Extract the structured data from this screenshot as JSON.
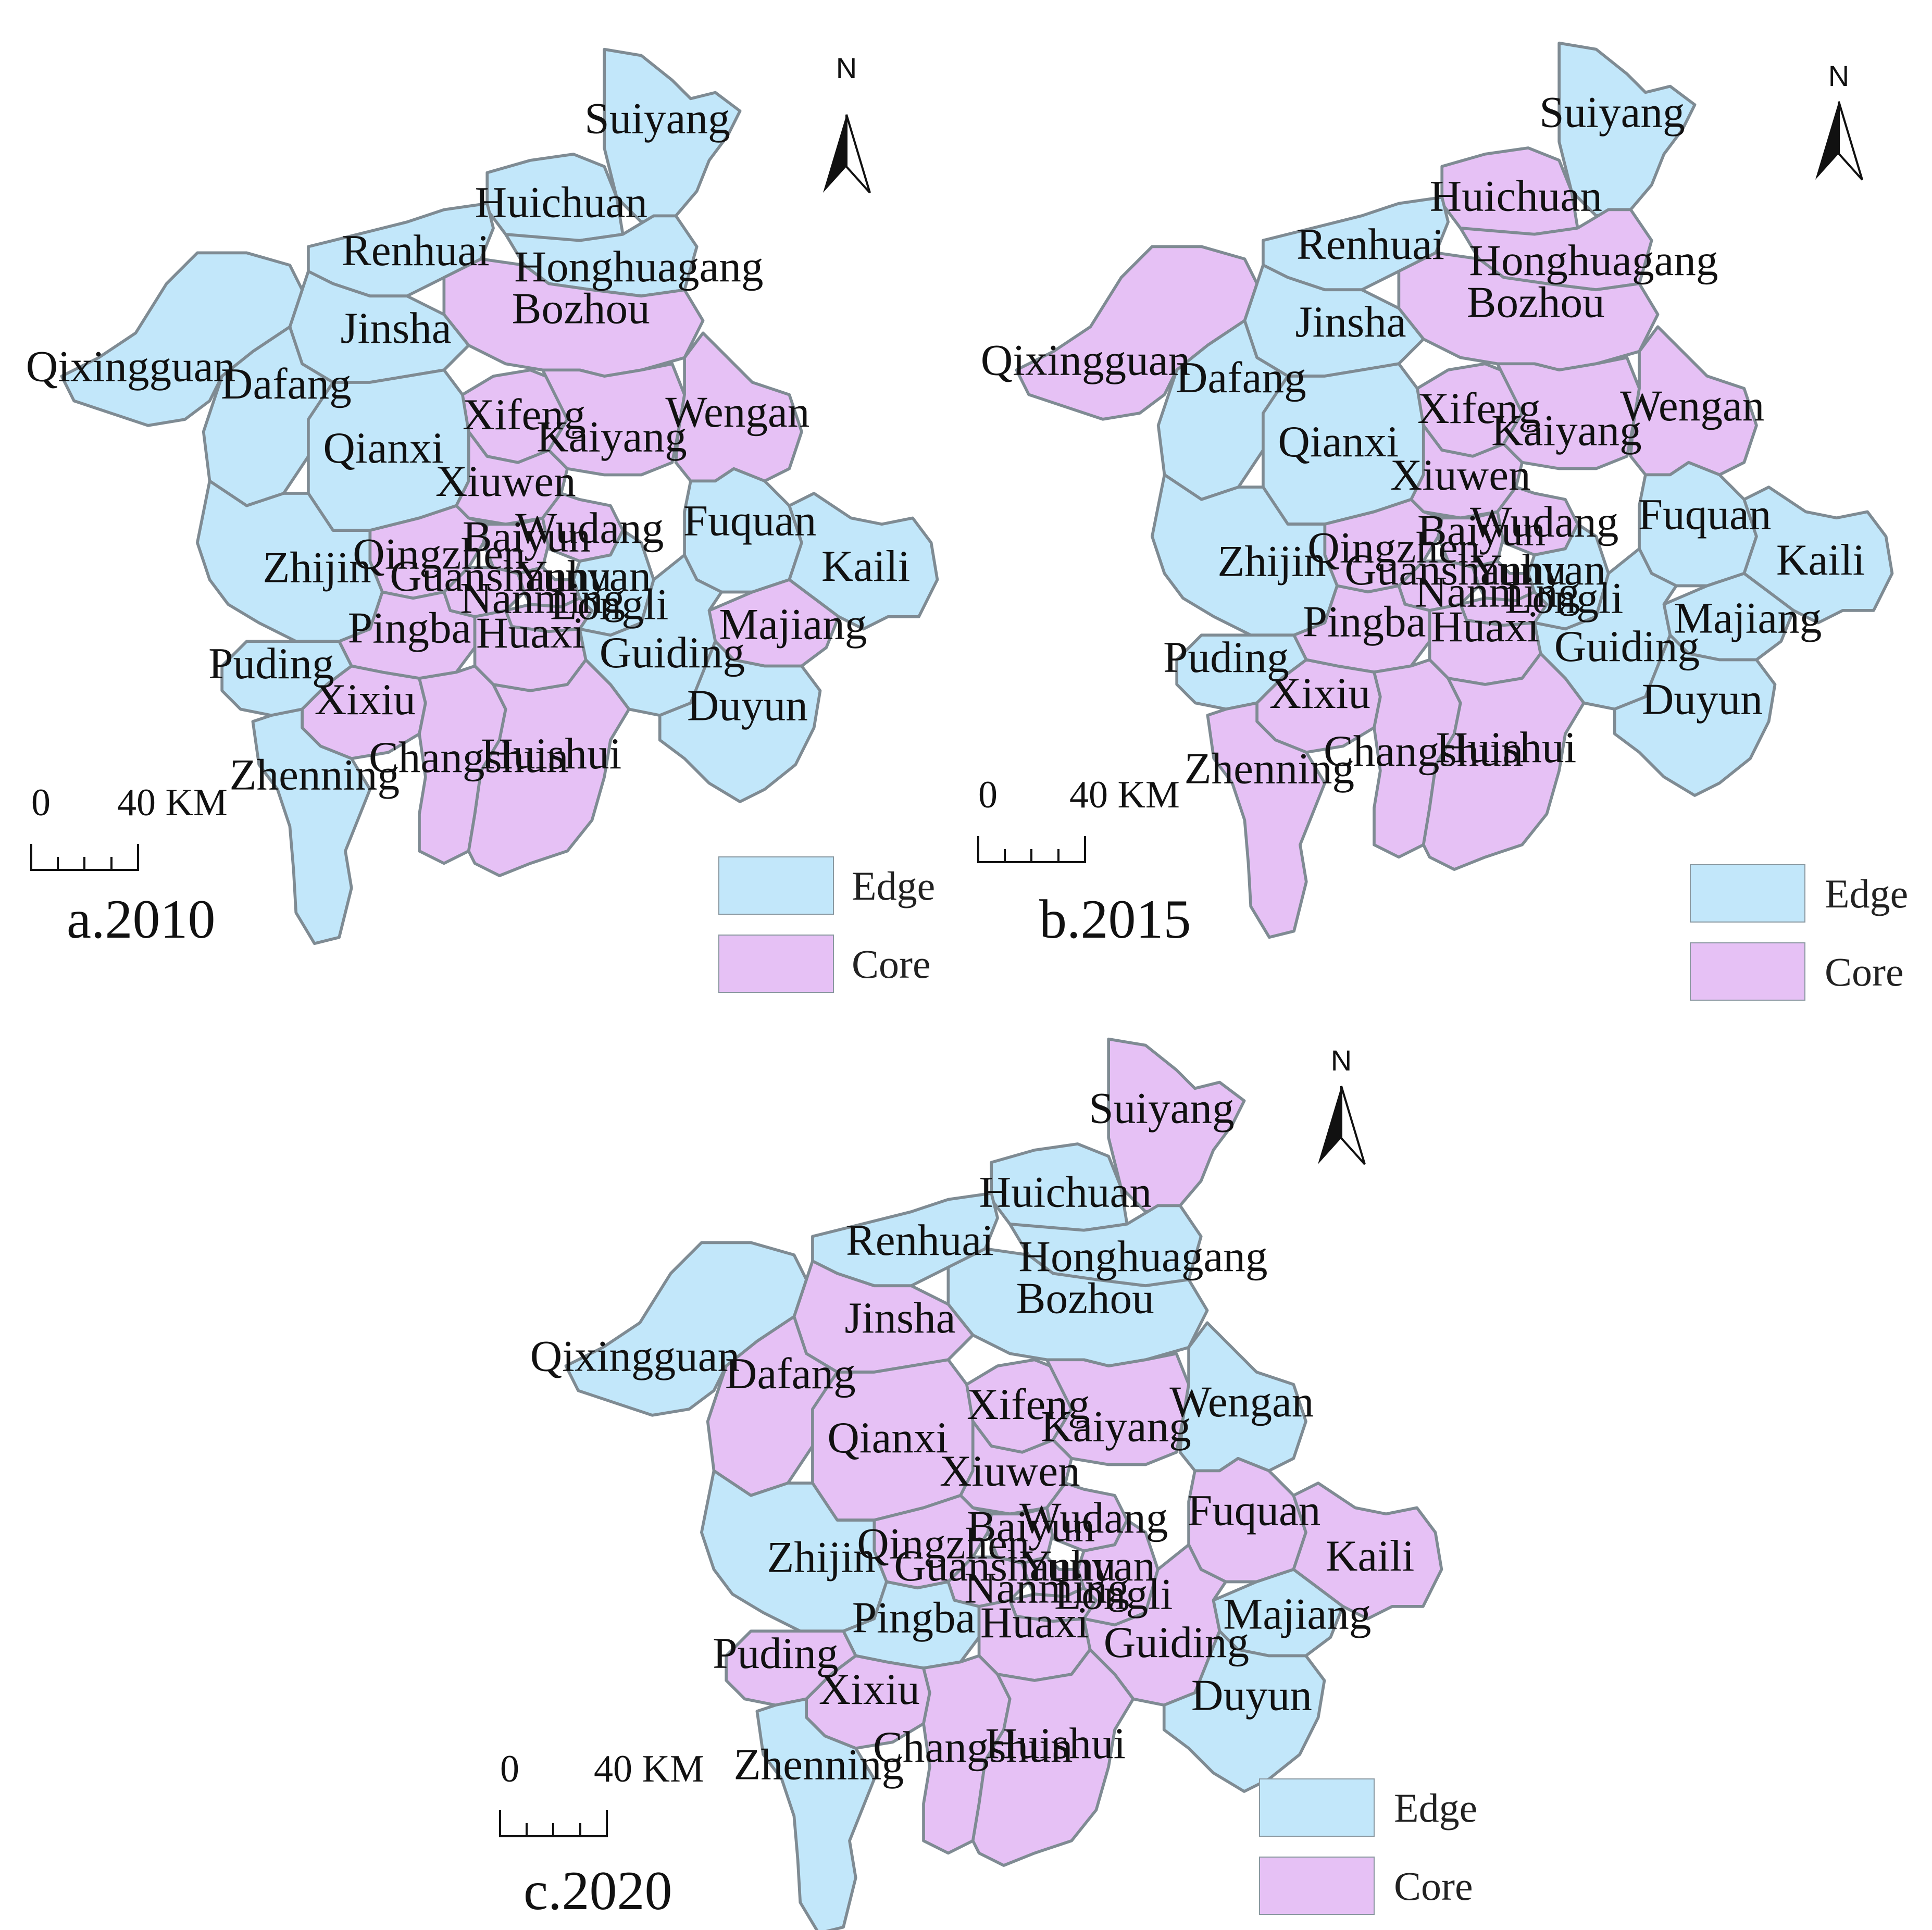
{
  "colors": {
    "Edge": "#c2e7fa",
    "Core": "#e6c1f5"
  },
  "north_label": "N",
  "scale": {
    "zero": "0",
    "distance": "40 KM"
  },
  "legend": [
    {
      "key": "Edge",
      "label": "Edge"
    },
    {
      "key": "Core",
      "label": "Core"
    }
  ],
  "maps": [
    {
      "panel": "a.2010",
      "cls": {
        "Suiyang": "Edge",
        "Huichuan": "Edge",
        "Renhuai": "Edge",
        "Honghuagang": "Edge",
        "Bozhou": "Core",
        "Jinsha": "Edge",
        "Qixingguan": "Edge",
        "Dafang": "Edge",
        "Qianxi": "Edge",
        "Xifeng": "Core",
        "Kaiyang": "Core",
        "Wengan": "Core",
        "Xiuwen": "Core",
        "Baiyun": "Core",
        "Wudang": "Core",
        "Qingzhen": "Core",
        "Guanshanhu": "Core",
        "Yunyan": "Core",
        "Nanming": "Core",
        "Longli": "Edge",
        "Zhijin": "Edge",
        "Fuquan": "Edge",
        "Kaili": "Edge",
        "Majiang": "Core",
        "Pingba": "Core",
        "Huaxi": "Core",
        "Guiding": "Edge",
        "Duyun": "Edge",
        "Puding": "Edge",
        "Xixiu": "Core",
        "Changshun": "Core",
        "Huishui": "Core",
        "Zhenning": "Edge"
      }
    },
    {
      "panel": "b.2015",
      "cls": {
        "Suiyang": "Edge",
        "Huichuan": "Core",
        "Renhuai": "Edge",
        "Honghuagang": "Core",
        "Bozhou": "Core",
        "Jinsha": "Edge",
        "Qixingguan": "Core",
        "Dafang": "Edge",
        "Qianxi": "Edge",
        "Xifeng": "Core",
        "Kaiyang": "Core",
        "Wengan": "Core",
        "Xiuwen": "Core",
        "Baiyun": "Core",
        "Wudang": "Core",
        "Qingzhen": "Core",
        "Guanshanhu": "Core",
        "Yunyan": "Core",
        "Nanming": "Core",
        "Longli": "Edge",
        "Zhijin": "Edge",
        "Fuquan": "Edge",
        "Kaili": "Edge",
        "Majiang": "Edge",
        "Pingba": "Core",
        "Huaxi": "Core",
        "Guiding": "Edge",
        "Duyun": "Edge",
        "Puding": "Edge",
        "Xixiu": "Core",
        "Changshun": "Core",
        "Huishui": "Core",
        "Zhenning": "Core"
      }
    },
    {
      "panel": "c.2020",
      "cls": {
        "Suiyang": "Core",
        "Huichuan": "Edge",
        "Renhuai": "Edge",
        "Honghuagang": "Edge",
        "Bozhou": "Edge",
        "Jinsha": "Core",
        "Qixingguan": "Edge",
        "Dafang": "Core",
        "Qianxi": "Core",
        "Xifeng": "Core",
        "Kaiyang": "Core",
        "Wengan": "Edge",
        "Xiuwen": "Core",
        "Baiyun": "Core",
        "Wudang": "Core",
        "Qingzhen": "Core",
        "Guanshanhu": "Core",
        "Yunyan": "Core",
        "Nanming": "Core",
        "Longli": "Core",
        "Zhijin": "Edge",
        "Fuquan": "Core",
        "Kaili": "Core",
        "Majiang": "Edge",
        "Pingba": "Edge",
        "Huaxi": "Core",
        "Guiding": "Core",
        "Duyun": "Edge",
        "Puding": "Core",
        "Xixiu": "Core",
        "Changshun": "Core",
        "Huishui": "Core",
        "Zhenning": "Edge"
      }
    }
  ]
}
